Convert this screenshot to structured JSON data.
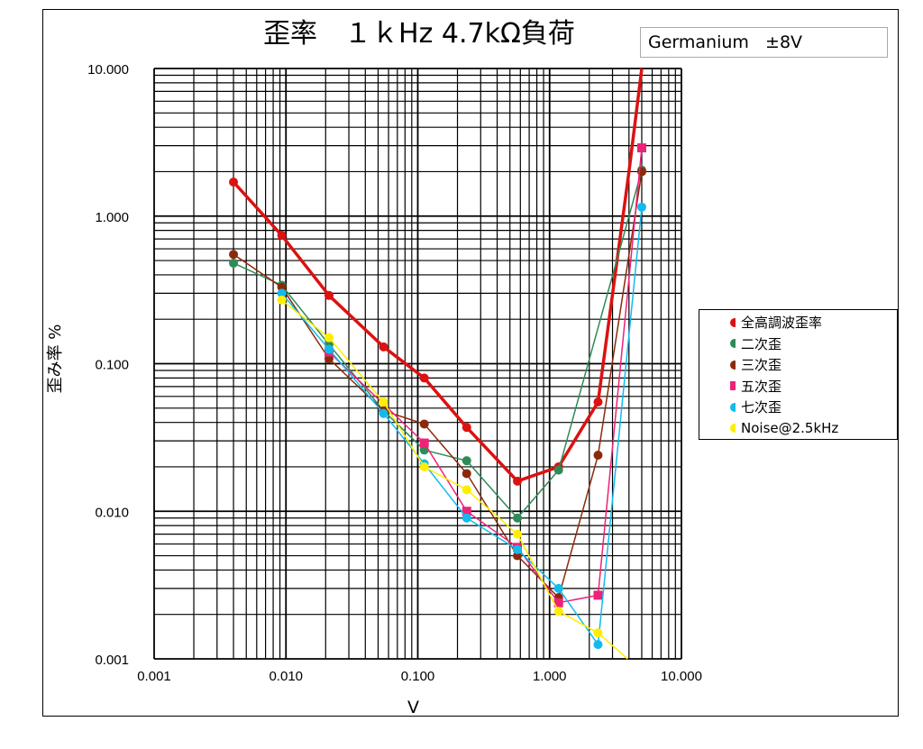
{
  "chart_data": {
    "type": "line",
    "title": "歪率　１ｋHz 4.7kΩ負荷",
    "subtitle": "Germanium   ±8V",
    "xlabel": "V",
    "ylabel": "歪み率 %",
    "xscale": "log",
    "yscale": "log",
    "xlim": [
      0.001,
      10
    ],
    "ylim": [
      0.001,
      10
    ],
    "x_ticks": [
      "0.001",
      "0.010",
      "0.100",
      "1.000",
      "10.000"
    ],
    "y_ticks": [
      "0.001",
      "0.010",
      "0.100",
      "1.000",
      "10.000"
    ],
    "grid": true,
    "legend_position": "right",
    "series": [
      {
        "name": "全高調波歪率",
        "color": "#dd1111",
        "marker": "circle",
        "line_width": 3.5,
        "x": [
          0.004,
          0.0093,
          0.0212,
          0.055,
          0.112,
          0.235,
          0.57,
          1.17,
          2.33,
          4.0,
          5.0
        ],
        "y": [
          1.7,
          0.74,
          0.29,
          0.13,
          0.08,
          0.037,
          0.016,
          0.02,
          0.055,
          2.0,
          10.0
        ],
        "markers": [
          true,
          true,
          true,
          true,
          true,
          true,
          true,
          true,
          true,
          false,
          false
        ]
      },
      {
        "name": "二次歪",
        "color": "#2e8b57",
        "marker": "circle",
        "line_width": 1.5,
        "x": [
          0.004,
          0.0093,
          0.0212,
          0.055,
          0.112,
          0.235,
          0.57,
          1.17,
          5.0
        ],
        "y": [
          0.48,
          0.34,
          0.135,
          0.048,
          0.026,
          0.022,
          0.009,
          0.019,
          2.05
        ]
      },
      {
        "name": "三次歪",
        "color": "#8b2a0a",
        "marker": "circle",
        "line_width": 1.5,
        "x": [
          0.004,
          0.0093,
          0.0212,
          0.055,
          0.112,
          0.235,
          0.57,
          1.17,
          2.33,
          5.0
        ],
        "y": [
          0.55,
          0.33,
          0.108,
          0.048,
          0.039,
          0.018,
          0.005,
          0.0026,
          0.024,
          2.0
        ]
      },
      {
        "name": "五次歪",
        "color": "#ee2277",
        "marker": "square",
        "line_width": 1.5,
        "x": [
          0.0212,
          0.112,
          0.235,
          0.57,
          1.17,
          2.33,
          5.0
        ],
        "y": [
          0.12,
          0.029,
          0.01,
          0.0057,
          0.0024,
          0.0027,
          2.9
        ]
      },
      {
        "name": "七次歪",
        "color": "#11bbee",
        "marker": "circle",
        "line_width": 1.5,
        "x": [
          0.0093,
          0.0212,
          0.055,
          0.112,
          0.235,
          0.57,
          1.17,
          2.33,
          5.0
        ],
        "y": [
          0.3,
          0.125,
          0.046,
          0.021,
          0.009,
          0.0055,
          0.003,
          0.00125,
          1.15
        ]
      },
      {
        "name": "Noise@2.5kHz",
        "color": "#ffee00",
        "marker": "circle",
        "line_width": 1.5,
        "x": [
          0.0093,
          0.0212,
          0.055,
          0.112,
          0.235,
          0.57,
          1.17,
          2.33,
          3.9
        ],
        "y": [
          0.27,
          0.15,
          0.055,
          0.02,
          0.014,
          0.007,
          0.0021,
          0.0015,
          0.001
        ],
        "markers": [
          true,
          true,
          true,
          true,
          true,
          true,
          true,
          true,
          false
        ]
      }
    ]
  }
}
